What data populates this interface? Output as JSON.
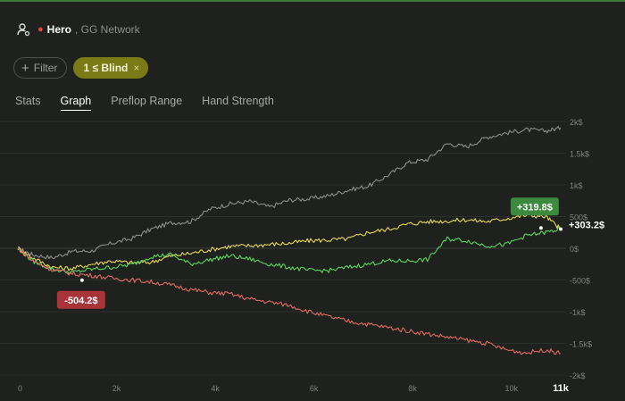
{
  "header": {
    "user_icon": "user-settings-icon",
    "hero": "Hero",
    "network": ", GG Network"
  },
  "filters": {
    "filter_label": "Filter",
    "blind_label": "1 ≤ Blind",
    "close_icon": "×"
  },
  "tabs": [
    "Stats",
    "Graph",
    "Preflop Range",
    "Hand Strength"
  ],
  "active_tab": "Graph",
  "colors": {
    "gray": "#8e8e8e",
    "yellow": "#e6d85a",
    "green": "#5ed45e",
    "red": "#e06b62",
    "min_badge": "#a8343a",
    "max_badge": "#3b8a3d"
  },
  "chart_data": {
    "type": "line",
    "x_ticks": [
      "0",
      "2k",
      "4k",
      "6k",
      "8k",
      "10k",
      "11k"
    ],
    "x_tick_values": [
      0,
      2000,
      4000,
      6000,
      8000,
      10000,
      11000
    ],
    "y_ticks": [
      "2k$",
      "1.5k$",
      "1k$",
      "500$",
      "0$",
      "-500$",
      "-1k$",
      "-1.5k$",
      "-2k$"
    ],
    "y_tick_values": [
      2000,
      1500,
      1000,
      500,
      0,
      -500,
      -1000,
      -1500,
      -2000
    ],
    "xlim": [
      0,
      11000
    ],
    "ylim": [
      -2000,
      2000
    ],
    "grid": "horizontal",
    "series": [
      {
        "key": "gray",
        "x": [
          0,
          300,
          700,
          1100,
          1500,
          1900,
          2300,
          2700,
          3100,
          3500,
          3900,
          4300,
          4700,
          5100,
          5500,
          5900,
          6300,
          6700,
          7100,
          7500,
          7900,
          8300,
          8700,
          9100,
          9500,
          9900,
          10300,
          10700,
          11000
        ],
        "y": [
          0,
          -100,
          -150,
          -50,
          -40,
          80,
          150,
          300,
          400,
          420,
          620,
          700,
          740,
          650,
          760,
          780,
          830,
          920,
          980,
          1150,
          1350,
          1400,
          1650,
          1600,
          1750,
          1820,
          1870,
          1850,
          1900
        ]
      },
      {
        "key": "yellow",
        "x": [
          0,
          300,
          700,
          1100,
          1500,
          1900,
          2300,
          2700,
          3100,
          3500,
          3900,
          4300,
          4700,
          5100,
          5500,
          5900,
          6300,
          6700,
          7100,
          7500,
          7900,
          8300,
          8700,
          9100,
          9500,
          9900,
          10300,
          10700,
          11000
        ],
        "y": [
          0,
          -150,
          -300,
          -320,
          -250,
          -200,
          -230,
          -220,
          -120,
          -80,
          -20,
          30,
          40,
          60,
          80,
          120,
          130,
          150,
          250,
          300,
          380,
          420,
          430,
          450,
          420,
          470,
          520,
          500,
          303.2
        ]
      },
      {
        "key": "green",
        "x": [
          0,
          300,
          700,
          1100,
          1500,
          1900,
          2300,
          2700,
          3100,
          3500,
          3900,
          4300,
          4700,
          5100,
          5500,
          5900,
          6300,
          6700,
          7100,
          7500,
          7900,
          8300,
          8700,
          9100,
          9500,
          9900,
          10300,
          10700,
          11000
        ],
        "y": [
          0,
          -200,
          -330,
          -380,
          -330,
          -300,
          -260,
          -130,
          -100,
          -250,
          -180,
          -120,
          -170,
          -250,
          -300,
          -350,
          -350,
          -300,
          -250,
          -200,
          -200,
          -180,
          150,
          120,
          40,
          60,
          200,
          250,
          303.2
        ]
      },
      {
        "key": "red",
        "x": [
          0,
          300,
          700,
          1100,
          1500,
          1900,
          2300,
          2700,
          3100,
          3500,
          3900,
          4300,
          4700,
          5100,
          5500,
          5900,
          6300,
          6700,
          7100,
          7500,
          7900,
          8300,
          8700,
          9100,
          9500,
          9900,
          10300,
          10700,
          11000
        ],
        "y": [
          0,
          -200,
          -340,
          -400,
          -430,
          -470,
          -500,
          -530,
          -580,
          -650,
          -700,
          -720,
          -800,
          -850,
          -900,
          -1000,
          -1080,
          -1150,
          -1200,
          -1250,
          -1300,
          -1350,
          -1400,
          -1450,
          -1500,
          -1600,
          -1650,
          -1600,
          -1660
        ]
      }
    ],
    "annotations": [
      {
        "label": "-504.2$",
        "x": 1300,
        "y": -504.2,
        "color_key": "min_badge"
      },
      {
        "label": "+319.8$",
        "x": 10600,
        "y": 319.8,
        "color_key": "max_badge"
      },
      {
        "label": "+303.2$",
        "x": 11000,
        "y": 303.2,
        "color_key": null
      }
    ]
  }
}
